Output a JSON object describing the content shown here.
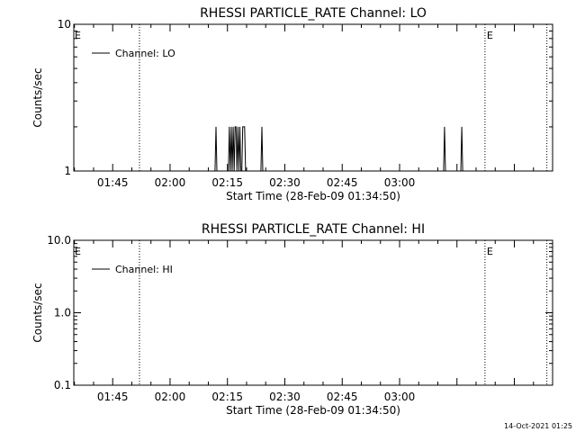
{
  "chart_data": [
    {
      "type": "line",
      "title": "RHESSI PARTICLE_RATE Channel: LO",
      "xlabel": "Start Time (28-Feb-09 01:34:50)",
      "ylabel": "Counts/sec",
      "yscale": "log",
      "ylim": [
        1,
        10
      ],
      "y_ticks": [
        "1",
        "10"
      ],
      "xlim": [
        "01:34:50",
        "03:40:00"
      ],
      "x_ticks": [
        "01:45",
        "02:00",
        "02:15",
        "02:30",
        "02:45",
        "03:00"
      ],
      "legend": {
        "position": "top-left",
        "entries": [
          "Channel: LO"
        ]
      },
      "event_lines": [
        {
          "time": "01:52:00",
          "label": ""
        },
        {
          "time": "03:22:20",
          "label": "E"
        },
        {
          "time": "03:38:30",
          "label": ""
        }
      ],
      "left_marker": "E",
      "series": [
        {
          "name": "Channel: LO",
          "x": [
            "02:11:45",
            "02:12:00",
            "02:12:15",
            "02:15:15",
            "02:15:30",
            "02:15:45",
            "02:16:00",
            "02:16:15",
            "02:16:30",
            "02:16:45",
            "02:17:00",
            "02:17:15",
            "02:17:30",
            "02:17:45",
            "02:18:00",
            "02:18:15",
            "02:18:30",
            "02:18:45",
            "02:19:00",
            "02:19:15",
            "02:19:30",
            "02:19:45",
            "02:23:45",
            "02:24:00",
            "02:24:15",
            "03:11:30",
            "03:11:45",
            "03:12:00",
            "03:16:00",
            "03:16:15",
            "03:16:30"
          ],
          "values": [
            1,
            2,
            1,
            1,
            2,
            1,
            2,
            1,
            2,
            1,
            2,
            2,
            1,
            2,
            1,
            2,
            1,
            1,
            2,
            2,
            2,
            1,
            1,
            2,
            1,
            1,
            2,
            1,
            1,
            2,
            1
          ]
        }
      ]
    },
    {
      "type": "line",
      "title": "RHESSI PARTICLE_RATE Channel: HI",
      "xlabel": "Start Time (28-Feb-09 01:34:50)",
      "ylabel": "Counts/sec",
      "yscale": "log",
      "ylim": [
        0.1,
        10
      ],
      "y_ticks": [
        "0.1",
        "1.0",
        "10.0"
      ],
      "xlim": [
        "01:34:50",
        "03:40:00"
      ],
      "x_ticks": [
        "01:45",
        "02:00",
        "02:15",
        "02:30",
        "02:45",
        "03:00"
      ],
      "legend": {
        "position": "top-left",
        "entries": [
          "Channel: HI"
        ]
      },
      "event_lines": [
        {
          "time": "01:52:00",
          "label": ""
        },
        {
          "time": "03:22:20",
          "label": "E"
        },
        {
          "time": "03:38:30",
          "label": ""
        }
      ],
      "left_marker": "E",
      "series": [
        {
          "name": "Channel: HI",
          "x": [],
          "values": []
        }
      ]
    }
  ],
  "timestamp": "14-Oct-2021 01:25"
}
